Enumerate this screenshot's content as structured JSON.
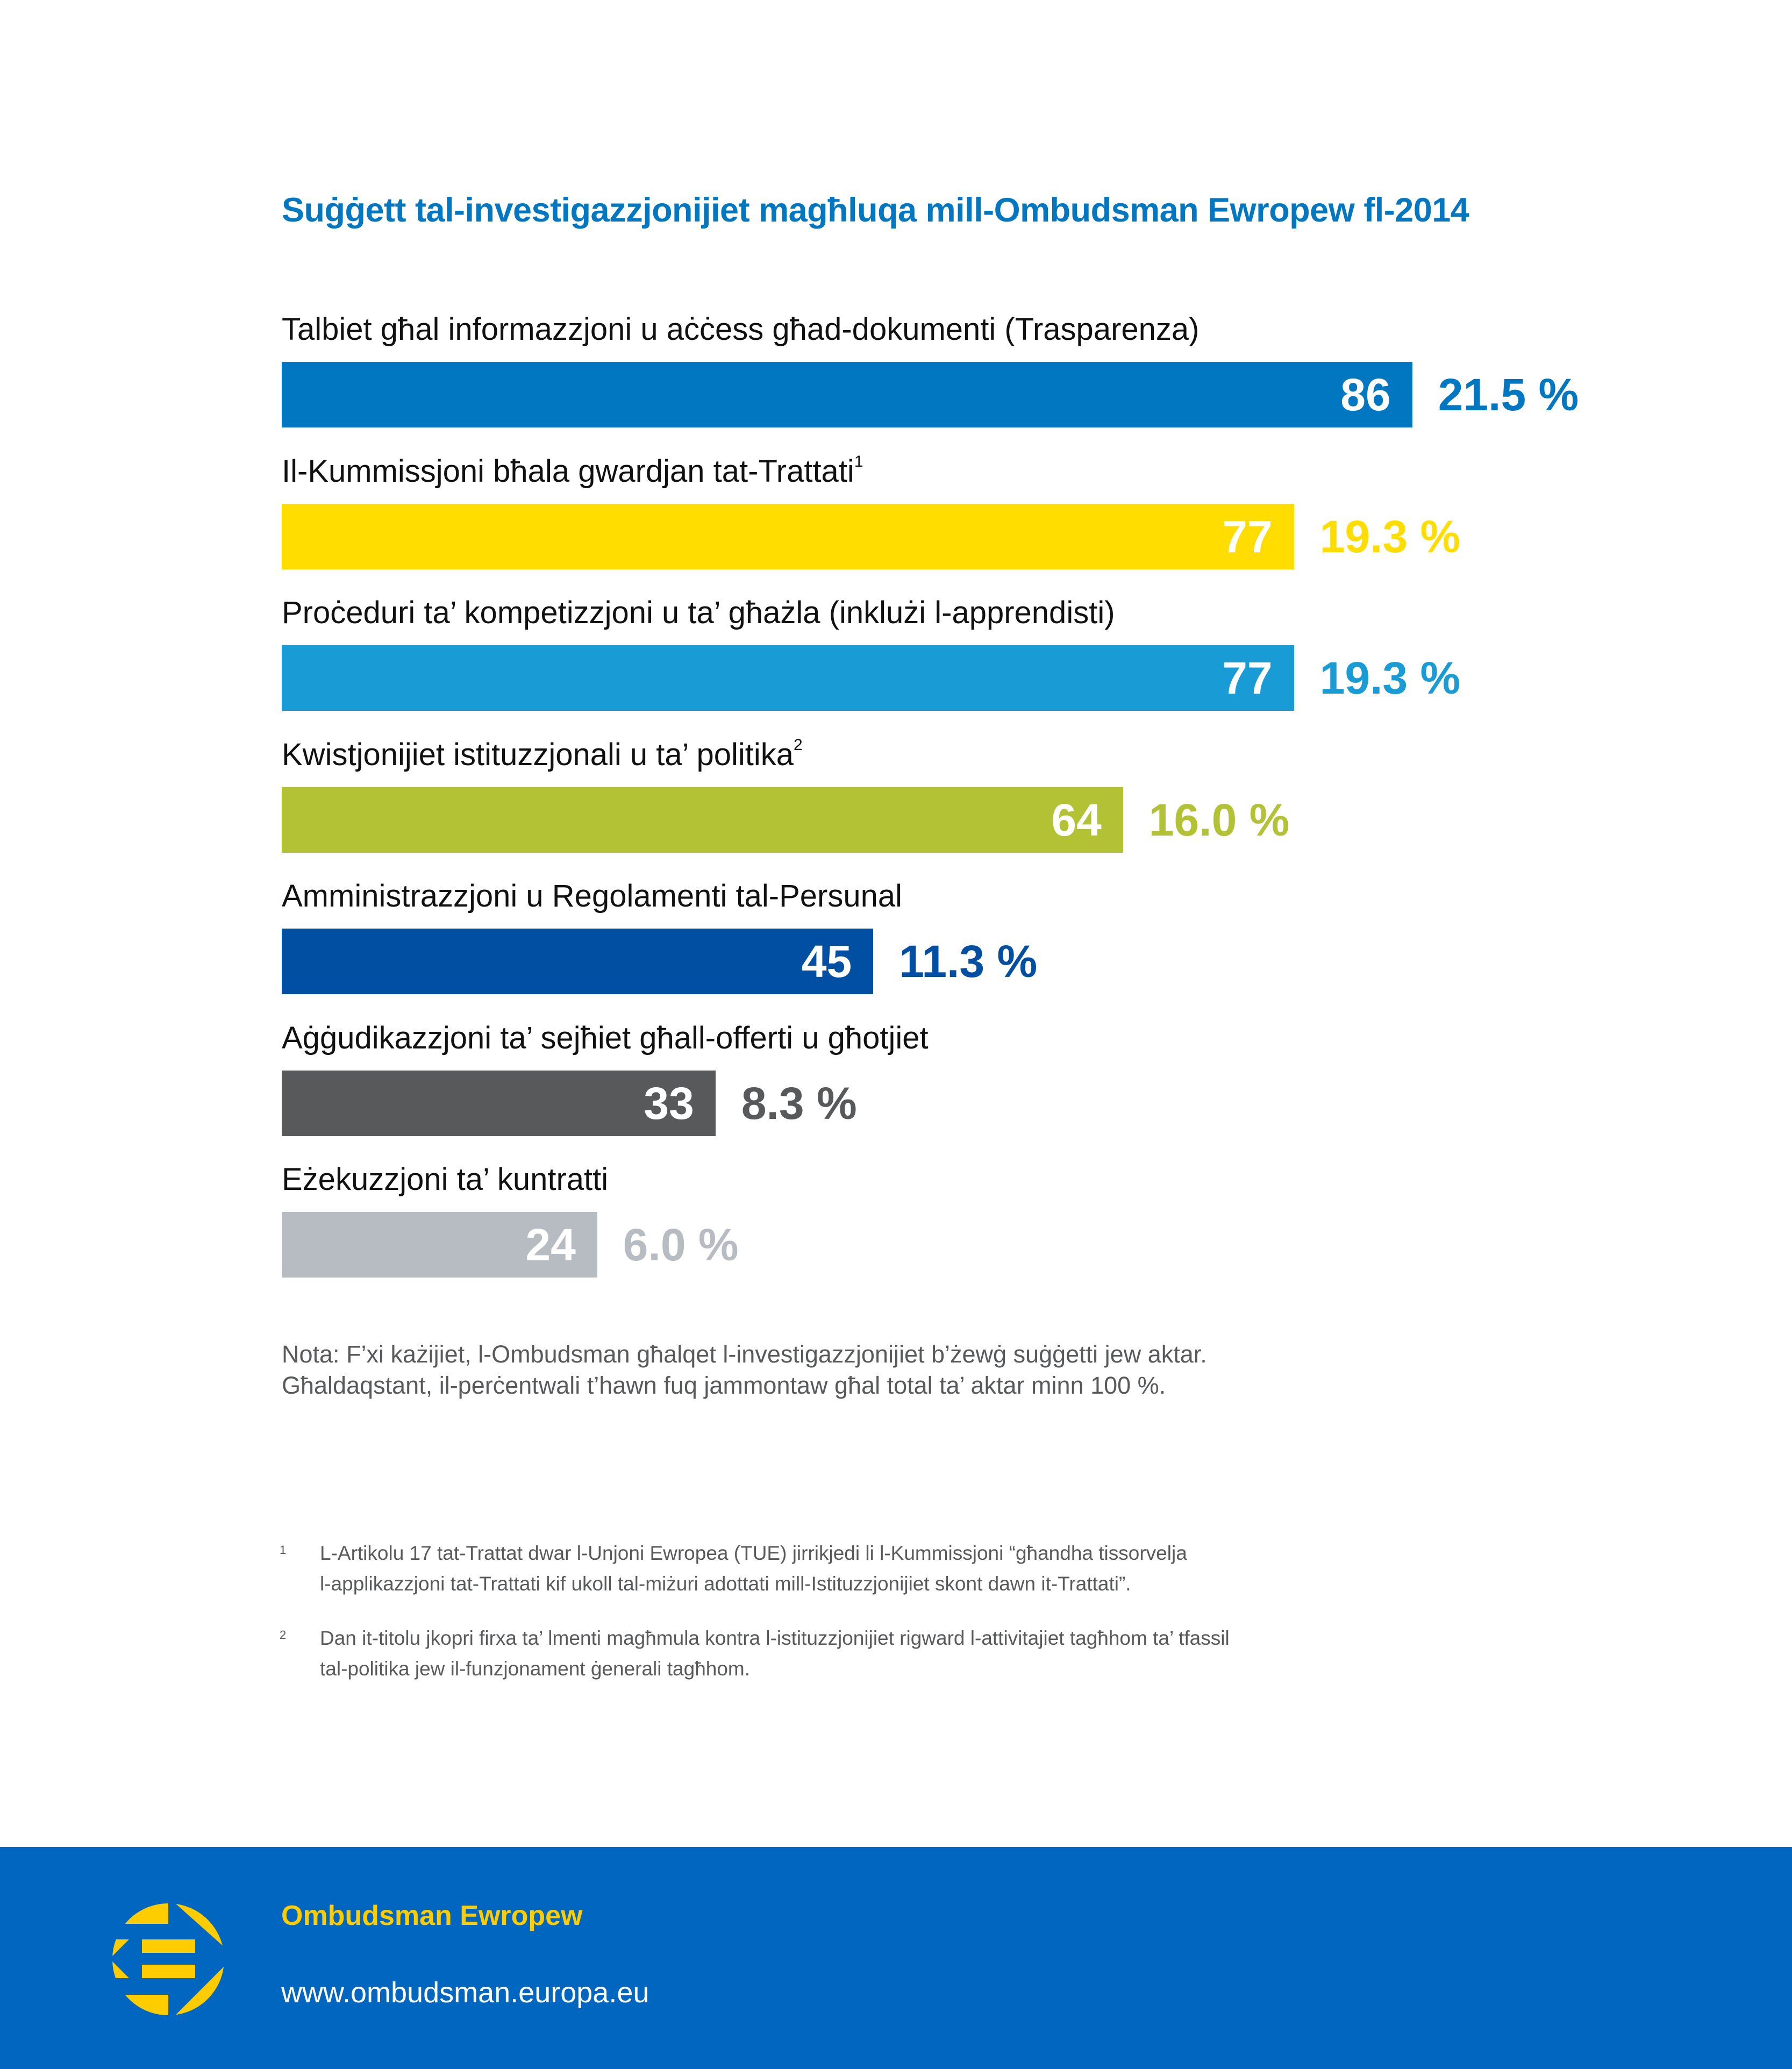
{
  "chart_data": {
    "type": "bar",
    "orientation": "horizontal",
    "title": "Suġġett tal-investigazzjonijiet magħluqa mill-Ombudsman Ewropew fl-2014",
    "categories": [
      "Talbiet għal informazzjoni u aċċess għad-dokumenti (Trasparenza)",
      "Il-Kummissjoni bħala gwardjan tat-Trattati",
      "Proċeduri ta’ kompetizzjoni u ta’ għażla (inklużi l-apprendisti)",
      "Kwistjonijiet istituzzjonali u ta’ politika",
      "Amministrazzjoni u Regolamenti tal-Persunal",
      "Aġġudikazzjoni ta’ sejħiet għall-offerti u għotjiet",
      "Eżekuzzjoni ta’ kuntratti"
    ],
    "footnote_refs": [
      "",
      "1",
      "",
      "2",
      "",
      "",
      ""
    ],
    "values": [
      86,
      77,
      77,
      64,
      45,
      33,
      24
    ],
    "value_labels": [
      "86",
      "77",
      "77",
      "64",
      "45",
      "33",
      "24"
    ],
    "percent_labels": [
      "21.5 %",
      "19.3 %",
      "19.3 %",
      "16.0 %",
      "11.3 %",
      "8.3 %",
      "6.0 %"
    ],
    "percentages": [
      21.5,
      19.3,
      19.3,
      16.0,
      11.3,
      8.3,
      6.0
    ],
    "colors": [
      "#0077C0",
      "#FFDD00",
      "#199CD6",
      "#B3C235",
      "#004FA2",
      "#58595B",
      "#B6BCC2"
    ],
    "xlabel": "",
    "ylabel": "",
    "xlim": [
      0,
      86
    ],
    "grid": false,
    "legend": "none"
  },
  "note": {
    "lines": [
      "Nota: F’xi każijiet, l-Ombudsman għalqet l-investigazzjonijiet b’żewġ suġġetti jew aktar.",
      "Għaldaqstant, il-perċentwali t’hawn fuq jammontaw għal total ta’ aktar minn 100 %."
    ]
  },
  "footnotes": [
    {
      "mark": "1",
      "lines": [
        "L-Artikolu 17 tat-Trattat dwar l-Unjoni Ewropea (TUE) jirrikjedi li l-Kummissjoni “għandha tissorvelja",
        "l-applikazzjoni tat-Trattati kif ukoll tal-miżuri adottati mill-Istituzzjonijiet skont dawn it-Trattati”."
      ]
    },
    {
      "mark": "2",
      "lines": [
        "Dan it-titolu jkopri firxa ta’ lmenti magħmula kontra l-istituzzjonijiet rigward l-attivitajiet tagħhom ta’ tfassil",
        "tal-politika jew il-funzjonament ġenerali tagħhom."
      ]
    }
  ],
  "footer": {
    "logo_icon": "european-ombudsman-logo",
    "name": "Ombudsman Ewropew",
    "url": "www.ombudsman.europa.eu",
    "background_color": "#0066BF",
    "accent_color": "#FFCC00"
  }
}
